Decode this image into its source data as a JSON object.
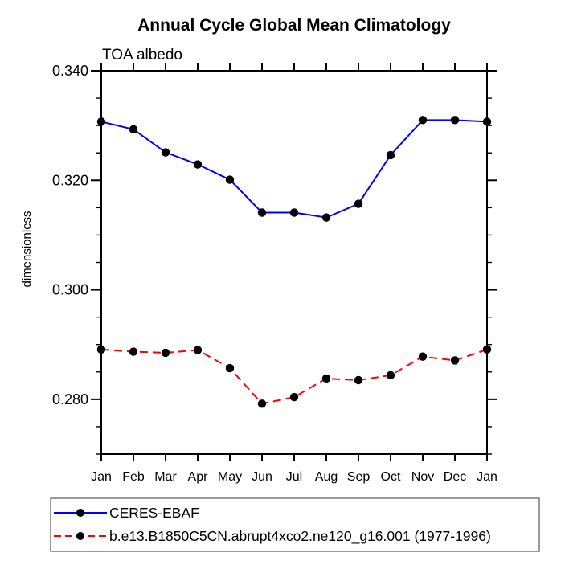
{
  "page": {
    "background": "#ffffff",
    "text_color": "#000000",
    "legend_border_color": "#6e6e6e"
  },
  "chart_data": {
    "type": "line",
    "title": "Annual Cycle Global Mean Climatology",
    "subtitle": "TOA albedo",
    "xlabel": "",
    "ylabel": "dimensionless",
    "categories": [
      "Jan",
      "Feb",
      "Mar",
      "Apr",
      "May",
      "Jun",
      "Jul",
      "Aug",
      "Sep",
      "Oct",
      "Nov",
      "Dec",
      "Jan"
    ],
    "ylim": [
      0.27,
      0.34
    ],
    "y_major_ticks": [
      0.28,
      0.3,
      0.32,
      0.34
    ],
    "y_minor_step": 0.005,
    "y_tick_decimals": 3,
    "grid": false,
    "legend_position": "bottom-left-outside",
    "series": [
      {
        "name": "CERES-EBAF",
        "color": "#0000ff",
        "line_style": "solid",
        "marker": "filled-circle",
        "marker_color": "#000000",
        "values": [
          0.3307,
          0.3293,
          0.3251,
          0.3229,
          0.3201,
          0.3141,
          0.3141,
          0.3132,
          0.3157,
          0.3246,
          0.331,
          0.331,
          0.3307
        ]
      },
      {
        "name": "b.e13.B1850C5CN.abrupt4xco2.ne120_g16.001 (1977-1996)",
        "color": "#ff0000",
        "line_style": "dashed",
        "marker": "filled-circle",
        "marker_color": "#000000",
        "values": [
          0.2891,
          0.2887,
          0.2885,
          0.289,
          0.2857,
          0.2792,
          0.2804,
          0.2838,
          0.2835,
          0.2844,
          0.2878,
          0.2871,
          0.2891
        ]
      }
    ]
  }
}
